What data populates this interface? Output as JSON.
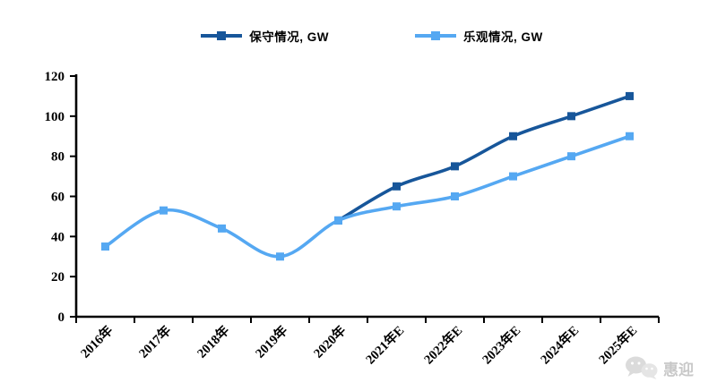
{
  "chart_data": {
    "type": "line",
    "categories": [
      "2016年",
      "2017年",
      "2018年",
      "2019年",
      "2020年",
      "2021年E",
      "2022年E",
      "2023年E",
      "2024年E",
      "2025年E"
    ],
    "series": [
      {
        "name": "保守情况, GW",
        "color": "#17569A",
        "values": [
          null,
          null,
          null,
          null,
          48,
          65,
          75,
          90,
          100,
          110
        ]
      },
      {
        "name": "乐观情况, GW",
        "color": "#55A8F2",
        "values": [
          35,
          53,
          44,
          30,
          48,
          55,
          60,
          70,
          80,
          90
        ]
      }
    ],
    "title": "",
    "xlabel": "",
    "ylabel": "",
    "ylim": [
      0,
      120
    ],
    "yticks": [
      0,
      20,
      40,
      60,
      80,
      100,
      120
    ],
    "grid": false,
    "legend_position": "top",
    "line_style": "smooth",
    "marker": "square",
    "axis_color": "#000000"
  },
  "watermark": {
    "text": "惠迎",
    "icon": "wechat-icon",
    "color": "#c6c6c6"
  }
}
